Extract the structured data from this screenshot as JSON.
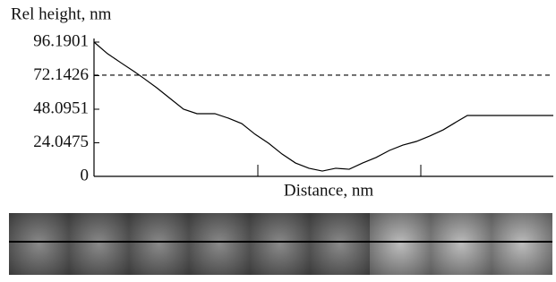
{
  "chart_data": {
    "type": "line",
    "ylabel": "Rel height, nm",
    "xlabel": "Distance, nm",
    "x": [
      0,
      15,
      30,
      45,
      55,
      70,
      85,
      100,
      115,
      135,
      150,
      165,
      180,
      195,
      210,
      225,
      240,
      255,
      270,
      285,
      300,
      315,
      330,
      345,
      360,
      375,
      390,
      405,
      417,
      435,
      513
    ],
    "series": [
      {
        "color": "#000000",
        "values": [
          96.2,
          87.9,
          81.4,
          75.0,
          70.5,
          63.5,
          55.8,
          48.1,
          44.9,
          44.9,
          41.7,
          37.8,
          30.1,
          23.7,
          16.0,
          9.6,
          5.8,
          3.8,
          5.8,
          5.1,
          9.6,
          13.5,
          18.6,
          22.4,
          25.0,
          28.9,
          33.3,
          39.1,
          43.6,
          43.6,
          43.6
        ]
      }
    ],
    "threshold": 72.5,
    "xlim": [
      0,
      513
    ],
    "ylim": [
      0,
      96.1901
    ],
    "yticks": [
      0,
      24.0475,
      48.0951,
      72.1426,
      96.1901
    ]
  }
}
